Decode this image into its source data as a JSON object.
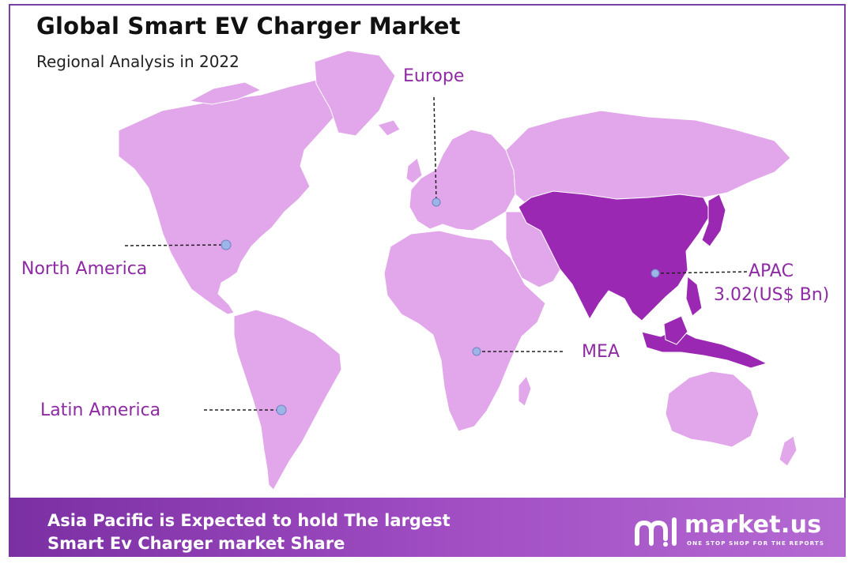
{
  "header": {
    "title": "Global Smart EV Charger Market",
    "subtitle": "Regional Analysis in 2022"
  },
  "colors": {
    "land": "#e2a6ea",
    "highlight": "#9b28b3",
    "label": "#8e2aa3",
    "frame": "#7b3fa8",
    "marker": "#9db4e6"
  },
  "regions": {
    "europe": "Europe",
    "north_america": "North America",
    "apac": "APAC",
    "apac_value": "3.02(US$ Bn)",
    "mea": "MEA",
    "latin_america": "Latin America"
  },
  "highlighted_region": "APAC",
  "footer": {
    "line1": "Asia Pacific is Expected to hold The largest",
    "line2": "Smart Ev Charger market Share",
    "brand": "market.us",
    "tagline": "ONE STOP SHOP FOR THE REPORTS"
  }
}
